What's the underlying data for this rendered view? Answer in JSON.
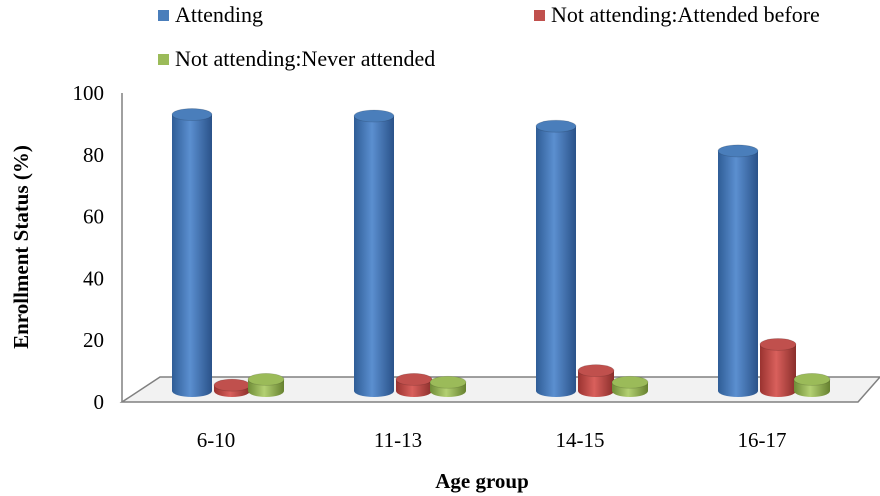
{
  "chart_data": {
    "type": "bar",
    "title": "",
    "xlabel": "Age group",
    "ylabel": "Enrollment Status (%)",
    "categories": [
      "6-10",
      "11-13",
      "14-15",
      "16-17"
    ],
    "ylim": [
      0,
      100
    ],
    "yticks": [
      "0",
      "20",
      "40",
      "60",
      "80",
      "100"
    ],
    "grid": false,
    "legend_position": "top",
    "series": [
      {
        "name": "Attending",
        "color": "#4a7ebb",
        "values": [
          95,
          94.5,
          91,
          82.5
        ]
      },
      {
        "name": "Not attending:Attended before",
        "color": "#c0504d",
        "values": [
          2,
          4,
          7,
          16
        ]
      },
      {
        "name": "Not attending:Never attended",
        "color": "#9bbb59",
        "values": [
          4,
          3,
          3,
          4
        ]
      }
    ]
  }
}
